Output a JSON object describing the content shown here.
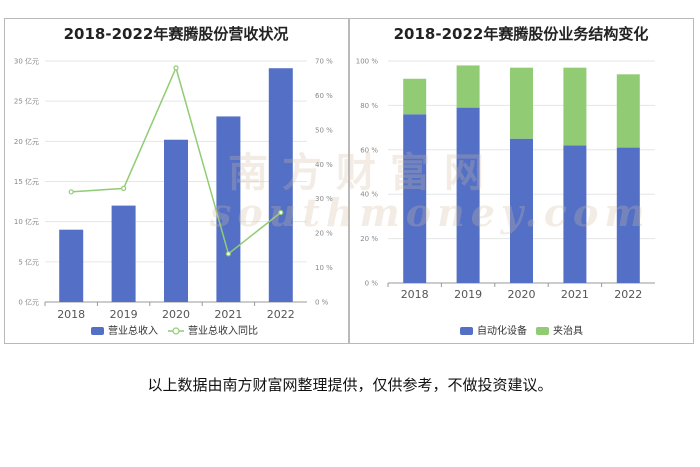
{
  "caption": "以上数据由南方财富网整理提供，仅供参考，不做投资建议。",
  "watermark": {
    "cn": "南方财富网",
    "en": "southmoney.com"
  },
  "colors": {
    "blue": "#5470c6",
    "green": "#91cc75",
    "line": "#91cc75"
  },
  "chart_data": [
    {
      "type": "bar+line",
      "title": "2018-2022年赛腾股份营收状况",
      "categories": [
        "2018",
        "2019",
        "2020",
        "2021",
        "2022"
      ],
      "series": [
        {
          "name": "营业总收入",
          "type": "bar",
          "axis": "left",
          "values": [
            9.0,
            12.0,
            20.2,
            23.1,
            29.1
          ]
        },
        {
          "name": "营业总收入同比",
          "type": "line",
          "axis": "right",
          "values": [
            32,
            33,
            68,
            14,
            26
          ]
        }
      ],
      "y_left": {
        "min": 0,
        "max": 30,
        "ticks": [
          0,
          5,
          10,
          15,
          20,
          25,
          30
        ],
        "unit": "亿元"
      },
      "y_right": {
        "min": 0,
        "max": 70,
        "ticks": [
          0,
          10,
          20,
          30,
          40,
          50,
          60,
          70
        ],
        "unit": "%"
      },
      "legend_position": "bottom"
    },
    {
      "type": "stacked-bar",
      "title": "2018-2022年赛腾股份业务结构变化",
      "categories": [
        "2018",
        "2019",
        "2020",
        "2021",
        "2022"
      ],
      "series": [
        {
          "name": "自动化设备",
          "values": [
            76,
            79,
            65,
            62,
            61
          ]
        },
        {
          "name": "夹治具",
          "values": [
            16,
            19,
            32,
            35,
            33
          ]
        }
      ],
      "y": {
        "min": 0,
        "max": 100,
        "ticks": [
          0,
          20,
          40,
          60,
          80,
          100
        ],
        "unit": "%"
      },
      "legend_position": "bottom"
    }
  ]
}
